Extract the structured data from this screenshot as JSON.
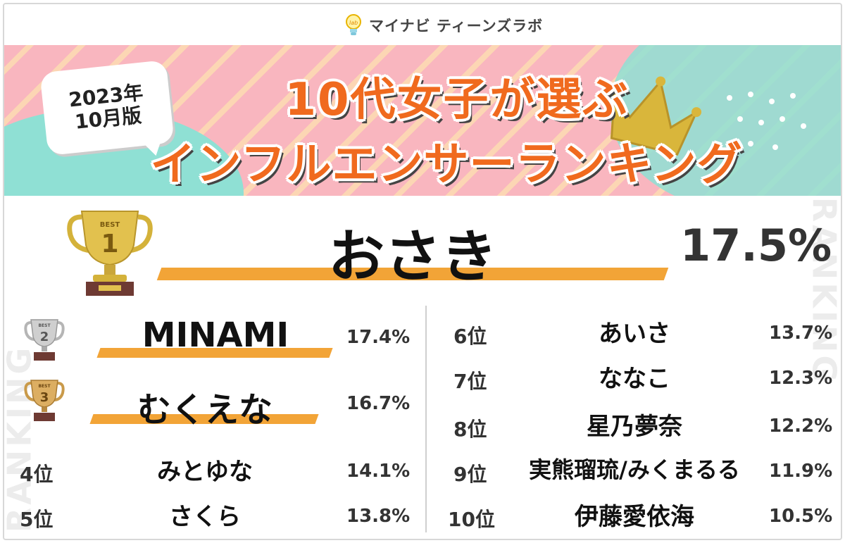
{
  "brand": {
    "name": "マイナビ ティーンズラボ",
    "logo_icon": "lab-bulb-icon"
  },
  "edition": {
    "year": "2023年",
    "month": "10月版"
  },
  "title": {
    "line1": "10代女子が選ぶ",
    "line2": "インフルエンサーランキング"
  },
  "side_text": "RANKING",
  "colors": {
    "title": "#f06a1e",
    "underline": "#f2a437",
    "banner_pink": "#f9b6bf",
    "banner_teal": "#8fe0d4"
  },
  "trophy_badge": "BEST",
  "chart_data": {
    "type": "table",
    "entries": [
      {
        "rank": 1,
        "rank_label": "1",
        "name": "おさき",
        "value": 17.5,
        "value_label": "17.5%"
      },
      {
        "rank": 2,
        "rank_label": "2",
        "name": "MINAMI",
        "value": 17.4,
        "value_label": "17.4%"
      },
      {
        "rank": 3,
        "rank_label": "3",
        "name": "むくえな",
        "value": 16.7,
        "value_label": "16.7%"
      },
      {
        "rank": 4,
        "rank_label": "4位",
        "name": "みとゆな",
        "value": 14.1,
        "value_label": "14.1%"
      },
      {
        "rank": 5,
        "rank_label": "5位",
        "name": "さくら",
        "value": 13.8,
        "value_label": "13.8%"
      },
      {
        "rank": 6,
        "rank_label": "6位",
        "name": "あいさ",
        "value": 13.7,
        "value_label": "13.7%"
      },
      {
        "rank": 7,
        "rank_label": "7位",
        "name": "ななこ",
        "value": 12.3,
        "value_label": "12.3%"
      },
      {
        "rank": 8,
        "rank_label": "8位",
        "name": "星乃夢奈",
        "value": 12.2,
        "value_label": "12.2%"
      },
      {
        "rank": 9,
        "rank_label": "9位",
        "name": "実熊瑠琉/みくまるる",
        "value": 11.9,
        "value_label": "11.9%"
      },
      {
        "rank": 10,
        "rank_label": "10位",
        "name": "伊藤愛依海",
        "value": 10.5,
        "value_label": "10.5%"
      }
    ]
  }
}
